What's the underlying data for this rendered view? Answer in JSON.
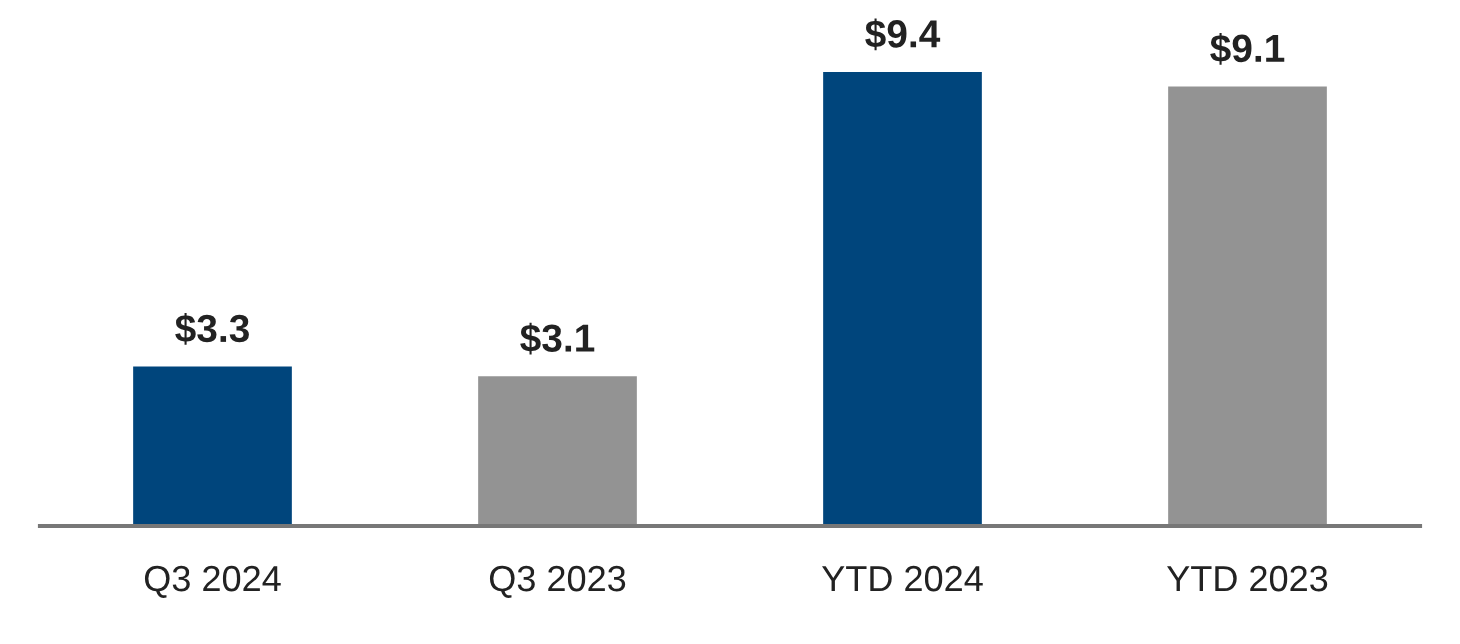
{
  "chart_data": {
    "type": "bar",
    "categories": [
      "Q3 2024",
      "Q3 2023",
      "YTD 2024",
      "YTD 2023"
    ],
    "values": [
      3.3,
      3.1,
      9.4,
      9.1
    ],
    "colors": [
      "#00457c",
      "#939393",
      "#00457c",
      "#939393"
    ],
    "value_labels": [
      "$3.3",
      "$3.1",
      "$9.4",
      "$9.1"
    ],
    "grid": false,
    "legend": false
  }
}
